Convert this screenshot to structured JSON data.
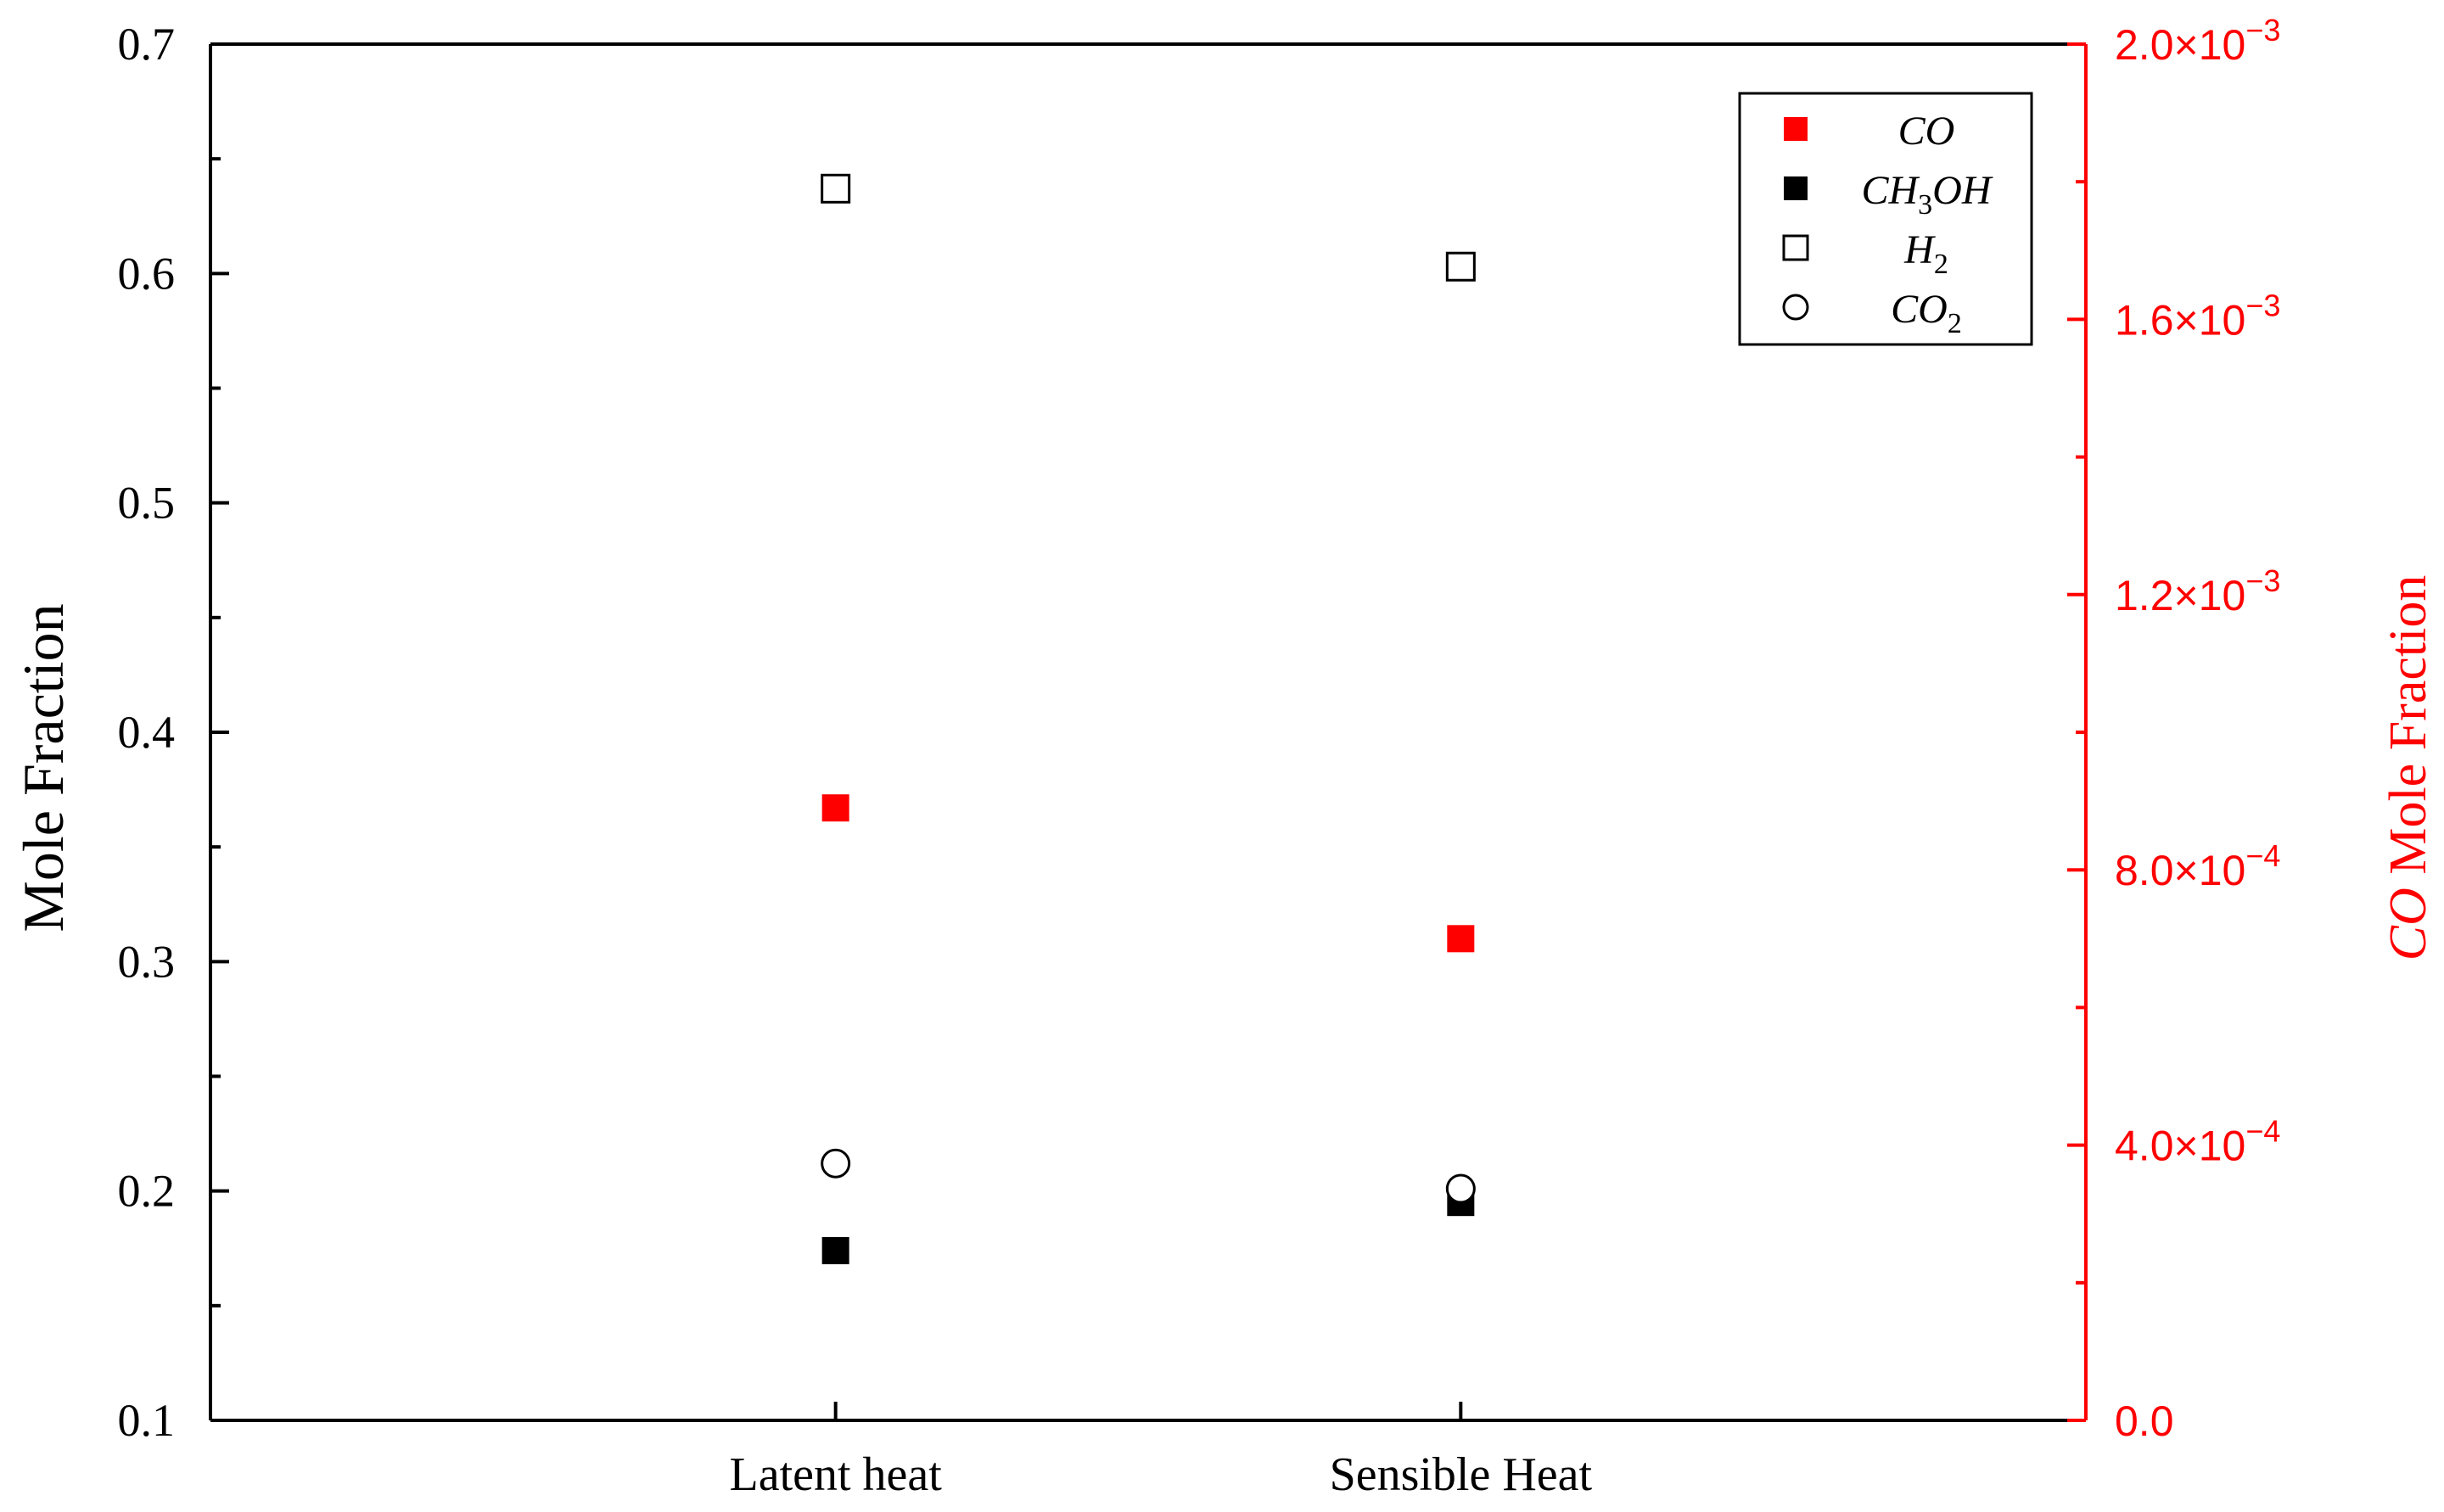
{
  "chart_data": {
    "type": "scatter",
    "categories": [
      "Latent heat",
      "Sensible Heat"
    ],
    "ylabel": "Mole Fraction",
    "ylabel_right": {
      "italic": "CO",
      "rest": " Mole Fraction"
    },
    "ylim": [
      0.1,
      0.7
    ],
    "yticks": [
      "0.1",
      "0.2",
      "0.3",
      "0.4",
      "0.5",
      "0.6",
      "0.7"
    ],
    "ylim_right": [
      0.0,
      0.002
    ],
    "yticks_right": [
      {
        "mant": "0.0",
        "exp": ""
      },
      {
        "mant": "4.0×10",
        "exp": "−4"
      },
      {
        "mant": "8.0×10",
        "exp": "−4"
      },
      {
        "mant": "1.2×10",
        "exp": "−3"
      },
      {
        "mant": "1.6×10",
        "exp": "−3"
      },
      {
        "mant": "2.0×10",
        "exp": "−3"
      }
    ],
    "right_axis_color": "#ff0000",
    "legend_position": "top-right",
    "series": [
      {
        "name": "CO",
        "sub": "",
        "marker": "filled-square",
        "color": "#ff0000",
        "axis": "right",
        "values": [
          0.00089,
          0.0007
        ]
      },
      {
        "name": "CH",
        "sub": "3",
        "name2": "OH",
        "marker": "filled-square",
        "color": "#000000",
        "axis": "left",
        "values": [
          0.174,
          0.195
        ]
      },
      {
        "name": "H",
        "sub": "2",
        "marker": "open-square",
        "color": "#000000",
        "axis": "left",
        "values": [
          0.637,
          0.603
        ]
      },
      {
        "name": "CO",
        "sub": "2",
        "marker": "open-circle",
        "color": "#000000",
        "axis": "left",
        "values": [
          0.212,
          0.201
        ]
      }
    ]
  }
}
